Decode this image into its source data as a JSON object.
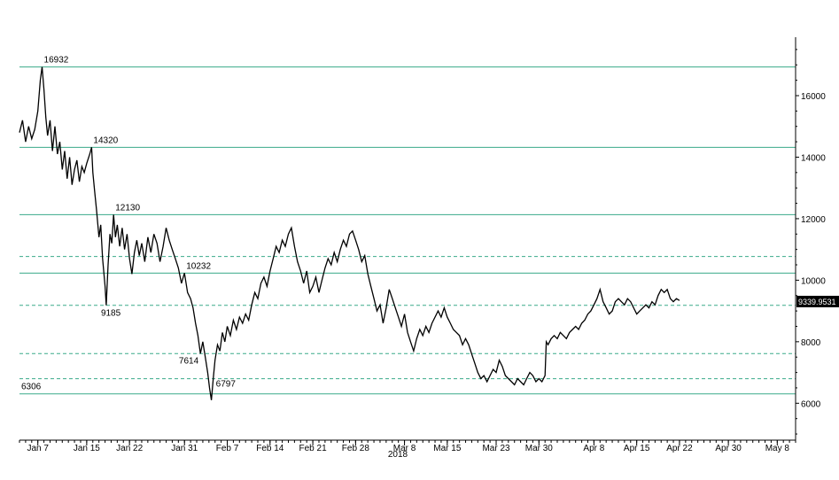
{
  "chart_data": {
    "type": "line",
    "title": "",
    "xlabel": "",
    "ylabel": "",
    "year": "2018",
    "x_tick_labels": [
      "Jan 7",
      "Jan 15",
      "Jan 22",
      "Jan 31",
      "Feb 7",
      "Feb 14",
      "Feb 21",
      "Feb 28",
      "Mar 8",
      "Mar 15",
      "Mar 23",
      "Mar 30",
      "Apr 8",
      "Apr 15",
      "Apr 22",
      "Apr 30",
      "May 8"
    ],
    "x_tick_days": [
      6,
      14,
      21,
      30,
      37,
      44,
      51,
      58,
      66,
      73,
      81,
      88,
      97,
      104,
      111,
      119,
      127
    ],
    "xlim_days": [
      3,
      130
    ],
    "ylim": [
      4800,
      17900
    ],
    "y_ticks": [
      6000,
      8000,
      10000,
      12000,
      14000,
      16000
    ],
    "last_value_label": "9339.9531",
    "last_value": 9339.95,
    "horizontal_lines": [
      {
        "value": 16932,
        "style": "solid",
        "label": "16932"
      },
      {
        "value": 14320,
        "style": "solid",
        "label": "14320"
      },
      {
        "value": 12130,
        "style": "solid",
        "label": "12130"
      },
      {
        "value": 10770,
        "style": "dashed",
        "label": ""
      },
      {
        "value": 10232,
        "style": "solid",
        "label": "10232"
      },
      {
        "value": 9185,
        "style": "dashed",
        "label": "9185"
      },
      {
        "value": 7614,
        "style": "dashed",
        "label": "7614"
      },
      {
        "value": 6797,
        "style": "dashed",
        "label": "6797"
      },
      {
        "value": 6306,
        "style": "solid",
        "label": "6306"
      }
    ],
    "series": [
      {
        "values": [
          [
            3.0,
            14800
          ],
          [
            3.5,
            15200
          ],
          [
            4.0,
            14500
          ],
          [
            4.5,
            15000
          ],
          [
            5.0,
            14600
          ],
          [
            5.5,
            14900
          ],
          [
            6.0,
            15500
          ],
          [
            6.4,
            16500
          ],
          [
            6.7,
            16932
          ],
          [
            7.0,
            16200
          ],
          [
            7.3,
            15300
          ],
          [
            7.6,
            14700
          ],
          [
            8.0,
            15200
          ],
          [
            8.4,
            14200
          ],
          [
            8.8,
            15000
          ],
          [
            9.2,
            14100
          ],
          [
            9.6,
            14500
          ],
          [
            10.0,
            13600
          ],
          [
            10.4,
            14200
          ],
          [
            10.8,
            13300
          ],
          [
            11.2,
            14000
          ],
          [
            11.6,
            13100
          ],
          [
            12.0,
            13600
          ],
          [
            12.4,
            13900
          ],
          [
            12.8,
            13200
          ],
          [
            13.2,
            13700
          ],
          [
            13.6,
            13500
          ],
          [
            14.0,
            13800
          ],
          [
            14.5,
            14100
          ],
          [
            14.8,
            14320
          ],
          [
            15.0,
            13500
          ],
          [
            15.3,
            12900
          ],
          [
            15.6,
            12300
          ],
          [
            16.0,
            11400
          ],
          [
            16.3,
            11800
          ],
          [
            16.6,
            10700
          ],
          [
            17.0,
            9800
          ],
          [
            17.2,
            9185
          ],
          [
            17.5,
            10500
          ],
          [
            17.8,
            11500
          ],
          [
            18.1,
            11200
          ],
          [
            18.4,
            12130
          ],
          [
            18.7,
            11400
          ],
          [
            19.0,
            11800
          ],
          [
            19.4,
            11100
          ],
          [
            19.8,
            11700
          ],
          [
            20.2,
            11000
          ],
          [
            20.6,
            11500
          ],
          [
            21.0,
            10700
          ],
          [
            21.4,
            10200
          ],
          [
            21.8,
            10900
          ],
          [
            22.2,
            11300
          ],
          [
            22.6,
            10800
          ],
          [
            23.0,
            11200
          ],
          [
            23.5,
            10600
          ],
          [
            24.0,
            11400
          ],
          [
            24.5,
            10900
          ],
          [
            25.0,
            11500
          ],
          [
            25.5,
            11200
          ],
          [
            26.0,
            10600
          ],
          [
            26.5,
            11100
          ],
          [
            27.0,
            11700
          ],
          [
            27.5,
            11300
          ],
          [
            28.0,
            11000
          ],
          [
            28.5,
            10700
          ],
          [
            29.0,
            10400
          ],
          [
            29.5,
            9900
          ],
          [
            30.0,
            10232
          ],
          [
            30.5,
            9600
          ],
          [
            31.0,
            9400
          ],
          [
            31.4,
            9100
          ],
          [
            31.8,
            8600
          ],
          [
            32.2,
            8200
          ],
          [
            32.6,
            7614
          ],
          [
            33.0,
            8000
          ],
          [
            33.4,
            7500
          ],
          [
            33.8,
            7000
          ],
          [
            34.1,
            6500
          ],
          [
            34.4,
            6100
          ],
          [
            34.7,
            6797
          ],
          [
            35.0,
            7400
          ],
          [
            35.4,
            7900
          ],
          [
            35.8,
            7700
          ],
          [
            36.2,
            8300
          ],
          [
            36.6,
            8000
          ],
          [
            37.0,
            8500
          ],
          [
            37.5,
            8200
          ],
          [
            38.0,
            8700
          ],
          [
            38.5,
            8400
          ],
          [
            39.0,
            8800
          ],
          [
            39.5,
            8600
          ],
          [
            40.0,
            8900
          ],
          [
            40.5,
            8700
          ],
          [
            41.0,
            9200
          ],
          [
            41.5,
            9600
          ],
          [
            42.0,
            9400
          ],
          [
            42.5,
            9900
          ],
          [
            43.0,
            10100
          ],
          [
            43.5,
            9800
          ],
          [
            44.0,
            10300
          ],
          [
            44.5,
            10700
          ],
          [
            45.0,
            11100
          ],
          [
            45.5,
            10900
          ],
          [
            46.0,
            11300
          ],
          [
            46.5,
            11100
          ],
          [
            47.0,
            11500
          ],
          [
            47.5,
            11700
          ],
          [
            48.0,
            11100
          ],
          [
            48.5,
            10600
          ],
          [
            49.0,
            10300
          ],
          [
            49.5,
            9900
          ],
          [
            50.0,
            10300
          ],
          [
            50.5,
            9600
          ],
          [
            51.0,
            9800
          ],
          [
            51.5,
            10100
          ],
          [
            52.0,
            9600
          ],
          [
            52.5,
            10000
          ],
          [
            53.0,
            10400
          ],
          [
            53.5,
            10700
          ],
          [
            54.0,
            10500
          ],
          [
            54.5,
            10900
          ],
          [
            55.0,
            10600
          ],
          [
            55.5,
            11000
          ],
          [
            56.0,
            11300
          ],
          [
            56.5,
            11100
          ],
          [
            57.0,
            11500
          ],
          [
            57.5,
            11600
          ],
          [
            58.0,
            11300
          ],
          [
            58.5,
            11000
          ],
          [
            59.0,
            10600
          ],
          [
            59.5,
            10800
          ],
          [
            60.0,
            10200
          ],
          [
            60.5,
            9800
          ],
          [
            61.0,
            9400
          ],
          [
            61.5,
            9000
          ],
          [
            62.0,
            9200
          ],
          [
            62.5,
            8600
          ],
          [
            63.0,
            9100
          ],
          [
            63.5,
            9700
          ],
          [
            64.0,
            9400
          ],
          [
            64.5,
            9100
          ],
          [
            65.0,
            8800
          ],
          [
            65.5,
            8500
          ],
          [
            66.0,
            8900
          ],
          [
            66.5,
            8300
          ],
          [
            67.0,
            8000
          ],
          [
            67.5,
            7700
          ],
          [
            68.0,
            8100
          ],
          [
            68.5,
            8400
          ],
          [
            69.0,
            8200
          ],
          [
            69.5,
            8500
          ],
          [
            70.0,
            8300
          ],
          [
            70.5,
            8600
          ],
          [
            71.0,
            8800
          ],
          [
            71.5,
            9000
          ],
          [
            72.0,
            8800
          ],
          [
            72.5,
            9100
          ],
          [
            73.0,
            8800
          ],
          [
            73.5,
            8600
          ],
          [
            74.0,
            8400
          ],
          [
            74.5,
            8300
          ],
          [
            75.0,
            8200
          ],
          [
            75.5,
            7900
          ],
          [
            76.0,
            8100
          ],
          [
            76.5,
            7900
          ],
          [
            77.0,
            7600
          ],
          [
            77.5,
            7300
          ],
          [
            78.0,
            7000
          ],
          [
            78.5,
            6800
          ],
          [
            79.0,
            6900
          ],
          [
            79.5,
            6700
          ],
          [
            80.0,
            6900
          ],
          [
            80.5,
            7100
          ],
          [
            81.0,
            7000
          ],
          [
            81.5,
            7400
          ],
          [
            82.0,
            7200
          ],
          [
            82.5,
            6900
          ],
          [
            83.0,
            6800
          ],
          [
            83.5,
            6700
          ],
          [
            84.0,
            6600
          ],
          [
            84.5,
            6800
          ],
          [
            85.0,
            6700
          ],
          [
            85.5,
            6600
          ],
          [
            86.0,
            6800
          ],
          [
            86.5,
            7000
          ],
          [
            87.0,
            6900
          ],
          [
            87.5,
            6700
          ],
          [
            88.0,
            6800
          ],
          [
            88.5,
            6700
          ],
          [
            89.0,
            6900
          ],
          [
            89.2,
            8000
          ],
          [
            89.5,
            7900
          ],
          [
            90.0,
            8100
          ],
          [
            90.5,
            8200
          ],
          [
            91.0,
            8100
          ],
          [
            91.5,
            8300
          ],
          [
            92.0,
            8200
          ],
          [
            92.5,
            8100
          ],
          [
            93.0,
            8300
          ],
          [
            93.5,
            8400
          ],
          [
            94.0,
            8500
          ],
          [
            94.5,
            8400
          ],
          [
            95.0,
            8600
          ],
          [
            95.5,
            8700
          ],
          [
            96.0,
            8900
          ],
          [
            96.5,
            9000
          ],
          [
            97.0,
            9200
          ],
          [
            97.5,
            9400
          ],
          [
            98.0,
            9700
          ],
          [
            98.5,
            9300
          ],
          [
            99.0,
            9100
          ],
          [
            99.5,
            8900
          ],
          [
            100.0,
            9000
          ],
          [
            100.5,
            9300
          ],
          [
            101.0,
            9400
          ],
          [
            101.5,
            9300
          ],
          [
            102.0,
            9200
          ],
          [
            102.5,
            9400
          ],
          [
            103.0,
            9300
          ],
          [
            103.5,
            9100
          ],
          [
            104.0,
            8900
          ],
          [
            104.5,
            9000
          ],
          [
            105.0,
            9100
          ],
          [
            105.5,
            9200
          ],
          [
            106.0,
            9100
          ],
          [
            106.5,
            9300
          ],
          [
            107.0,
            9200
          ],
          [
            107.5,
            9500
          ],
          [
            108.0,
            9700
          ],
          [
            108.5,
            9600
          ],
          [
            109.0,
            9700
          ],
          [
            109.5,
            9400
          ],
          [
            110.0,
            9300
          ],
          [
            110.5,
            9400
          ],
          [
            111.0,
            9339.95
          ]
        ]
      }
    ]
  }
}
